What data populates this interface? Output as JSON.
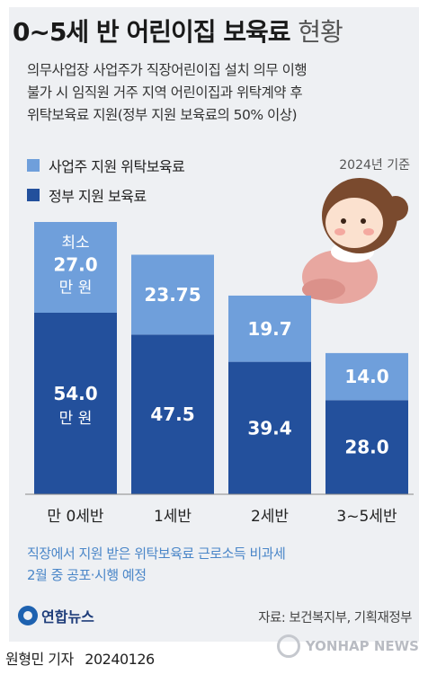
{
  "title": {
    "main": "0~5세 반 어린이집 보육료",
    "suffix": "현황"
  },
  "description": [
    "의무사업장 사업주가 직장어린이집 설치 의무 이행",
    "불가 시 임직원 거주 지역 어린이집과 위탁계약 후",
    "위탁보육료 지원(정부 지원 보육료의 50% 이상)"
  ],
  "basis": "2024년 기준",
  "colors": {
    "employer": "#6f9fdb",
    "government": "#23509c",
    "employer_text": "#ffffff",
    "panel": "#eef0f3"
  },
  "chart_data": {
    "type": "bar",
    "stacked": true,
    "categories": [
      "만 0세반",
      "1세반",
      "2세반",
      "3~5세반"
    ],
    "series": [
      {
        "name": "정부 지원 보육료",
        "values": [
          54.0,
          47.5,
          39.4,
          28.0
        ],
        "labels": [
          "54.0",
          "47.5",
          "39.4",
          "28.0"
        ]
      },
      {
        "name": "사업주 지원 위탁보육료",
        "values": [
          27.0,
          23.75,
          19.7,
          14.0
        ],
        "labels": [
          "27.0",
          "23.75",
          "19.7",
          "14.0"
        ]
      }
    ],
    "label_prefix_first": "최소",
    "label_unit_first": "만 원",
    "ylim": [
      0,
      81
    ]
  },
  "note": [
    "직장에서 지원 받은 위탁보육료 근로소득 비과세",
    "2월 중 공포·시행 예정"
  ],
  "logo": "연합뉴스",
  "source": "자료: 보건복지부, 기획재정부",
  "footer": {
    "reporter": "원형민 기자",
    "date": "20240126"
  },
  "watermark": "YONHAP NEWS"
}
